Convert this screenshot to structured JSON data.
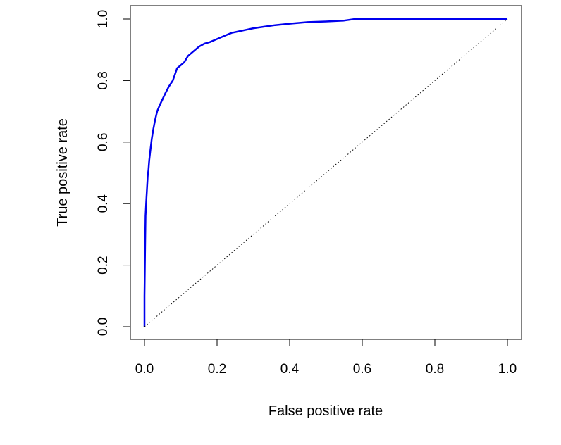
{
  "chart_data": {
    "type": "line",
    "xlabel": "False positive rate",
    "ylabel": "True positive rate",
    "xlim": [
      0,
      1
    ],
    "ylim": [
      0,
      1
    ],
    "x_ticks": [
      "0.0",
      "0.2",
      "0.4",
      "0.6",
      "0.8",
      "1.0"
    ],
    "y_ticks": [
      "0.0",
      "0.2",
      "0.4",
      "0.6",
      "0.8",
      "1.0"
    ],
    "grid": false,
    "legend": "none",
    "series": [
      {
        "style": "solid",
        "color": "#0000ee",
        "x": [
          0,
          0,
          0.002,
          0.003,
          0.005,
          0.007,
          0.009,
          0.011,
          0.013,
          0.016,
          0.02,
          0.024,
          0.029,
          0.035,
          0.042,
          0.05,
          0.058,
          0.067,
          0.078,
          0.09,
          0.1,
          0.11,
          0.12,
          0.13,
          0.14,
          0.15,
          0.165,
          0.18,
          0.2,
          0.22,
          0.24,
          0.26,
          0.28,
          0.3,
          0.33,
          0.36,
          0.4,
          0.45,
          0.5,
          0.55,
          0.58,
          0.6,
          0.7,
          0.8,
          0.9,
          1.0
        ],
        "y": [
          0,
          0.1,
          0.28,
          0.36,
          0.41,
          0.45,
          0.49,
          0.51,
          0.54,
          0.57,
          0.61,
          0.64,
          0.67,
          0.7,
          0.72,
          0.74,
          0.76,
          0.78,
          0.8,
          0.84,
          0.85,
          0.86,
          0.88,
          0.89,
          0.9,
          0.91,
          0.92,
          0.925,
          0.935,
          0.945,
          0.955,
          0.96,
          0.965,
          0.97,
          0.975,
          0.98,
          0.985,
          0.99,
          0.992,
          0.995,
          1.0,
          1.0,
          1.0,
          1.0,
          1.0,
          1.0
        ]
      },
      {
        "style": "dotted",
        "color": "#000000",
        "x": [
          0,
          1
        ],
        "y": [
          0,
          1
        ]
      }
    ]
  }
}
